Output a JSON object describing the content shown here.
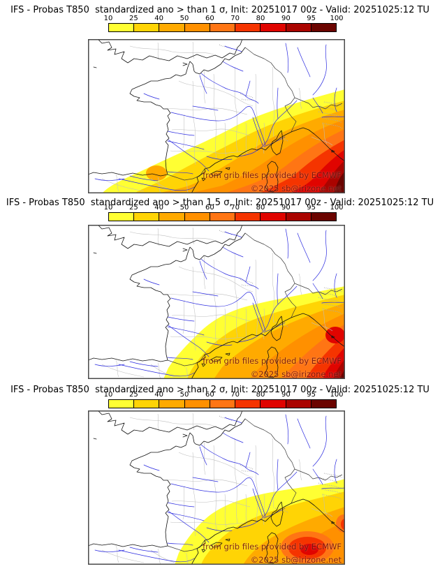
{
  "page": {
    "background": "#ffffff"
  },
  "colorbar": {
    "ticks": [
      "10",
      "25",
      "40",
      "50",
      "60",
      "70",
      "80",
      "90",
      "95",
      "100"
    ],
    "colors": [
      "#ffff33",
      "#ffd405",
      "#ffaa00",
      "#ff9000",
      "#ff7514",
      "#f53400",
      "#e00400",
      "#aa0400",
      "#6b0400"
    ]
  },
  "map_colors": {
    "coastline": "#131313",
    "rivers": "#2b2be0",
    "admin_borders": "#bfbfbf",
    "frame": "#4a4a4a"
  },
  "watermark": {
    "line1": "from grib files provided by ECMWF",
    "line2": "©2025 sb@irizone.net"
  },
  "panels": [
    {
      "title": "IFS - Probas T850  standardized ano > than 1 σ, Init: 20251017 00z - Valid: 20251025:12 TU"
    },
    {
      "title": "IFS - Probas T850  standardized ano > than 1.5 σ, Init: 20251017 00z - Valid: 20251025:12 TU"
    },
    {
      "title": "IFS - Probas T850  standardized ano > than 2 σ, Init: 20251017 00z - Valid: 20251025:12 TU"
    }
  ]
}
